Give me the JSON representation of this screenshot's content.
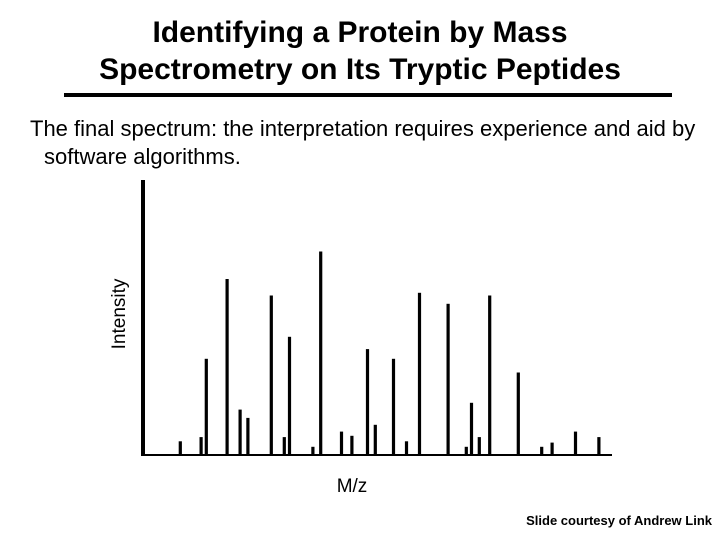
{
  "slide": {
    "title_line1": "Identifying a Protein by Mass",
    "title_line2": "Spectrometry on Its Tryptic Peptides",
    "body_text": "The final spectrum:  the interpretation requires experience and aid by software algorithms.",
    "credit": "Slide courtesy of Andrew Link"
  },
  "chart_data": {
    "type": "bar",
    "title": "",
    "xlabel": "M/z",
    "ylabel": "Intensity",
    "x_ticks": false,
    "y_ticks": false,
    "grid": false,
    "legend": "none",
    "ylim": [
      0,
      100
    ],
    "color": "#000000",
    "peaks": [
      {
        "mz": 7,
        "intensity": 5
      },
      {
        "mz": 15,
        "intensity": 6.5
      },
      {
        "mz": 17,
        "intensity": 35
      },
      {
        "mz": 25,
        "intensity": 64
      },
      {
        "mz": 30,
        "intensity": 16.5
      },
      {
        "mz": 33,
        "intensity": 13.5
      },
      {
        "mz": 42,
        "intensity": 58
      },
      {
        "mz": 47,
        "intensity": 6.5
      },
      {
        "mz": 49,
        "intensity": 43
      },
      {
        "mz": 58,
        "intensity": 3
      },
      {
        "mz": 61,
        "intensity": 74
      },
      {
        "mz": 69,
        "intensity": 8.5
      },
      {
        "mz": 73,
        "intensity": 7
      },
      {
        "mz": 79,
        "intensity": 38.5
      },
      {
        "mz": 82,
        "intensity": 11
      },
      {
        "mz": 89,
        "intensity": 35
      },
      {
        "mz": 94,
        "intensity": 5
      },
      {
        "mz": 99,
        "intensity": 59
      },
      {
        "mz": 110,
        "intensity": 55
      },
      {
        "mz": 117,
        "intensity": 3
      },
      {
        "mz": 119,
        "intensity": 19
      },
      {
        "mz": 122,
        "intensity": 6.5
      },
      {
        "mz": 126,
        "intensity": 58
      },
      {
        "mz": 137,
        "intensity": 30
      },
      {
        "mz": 146,
        "intensity": 3
      },
      {
        "mz": 150,
        "intensity": 4.5
      },
      {
        "mz": 159,
        "intensity": 8.5
      },
      {
        "mz": 168,
        "intensity": 6.5
      }
    ]
  }
}
